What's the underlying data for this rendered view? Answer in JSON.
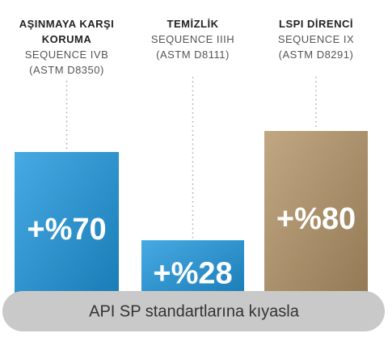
{
  "chart_data": {
    "type": "bar",
    "categories": [
      "AŞINMAYA KARŞI KORUMA",
      "TEMİZLİK",
      "LSPI DİRENCİ"
    ],
    "tests": [
      "SEQUENCE IVB",
      "SEQUENCE IIIH",
      "SEQUENCE IX"
    ],
    "standards": [
      "(ASTM D8350)",
      "(ASTM D8111)",
      "(ASTM D8291)"
    ],
    "values": [
      70,
      28,
      80
    ],
    "value_labels": [
      "+%70",
      "+%28",
      "+%80"
    ],
    "colors": [
      "#1f97dd",
      "#1f97dd",
      "#b39467"
    ],
    "note": "API SP standartlarına kıyasla"
  }
}
